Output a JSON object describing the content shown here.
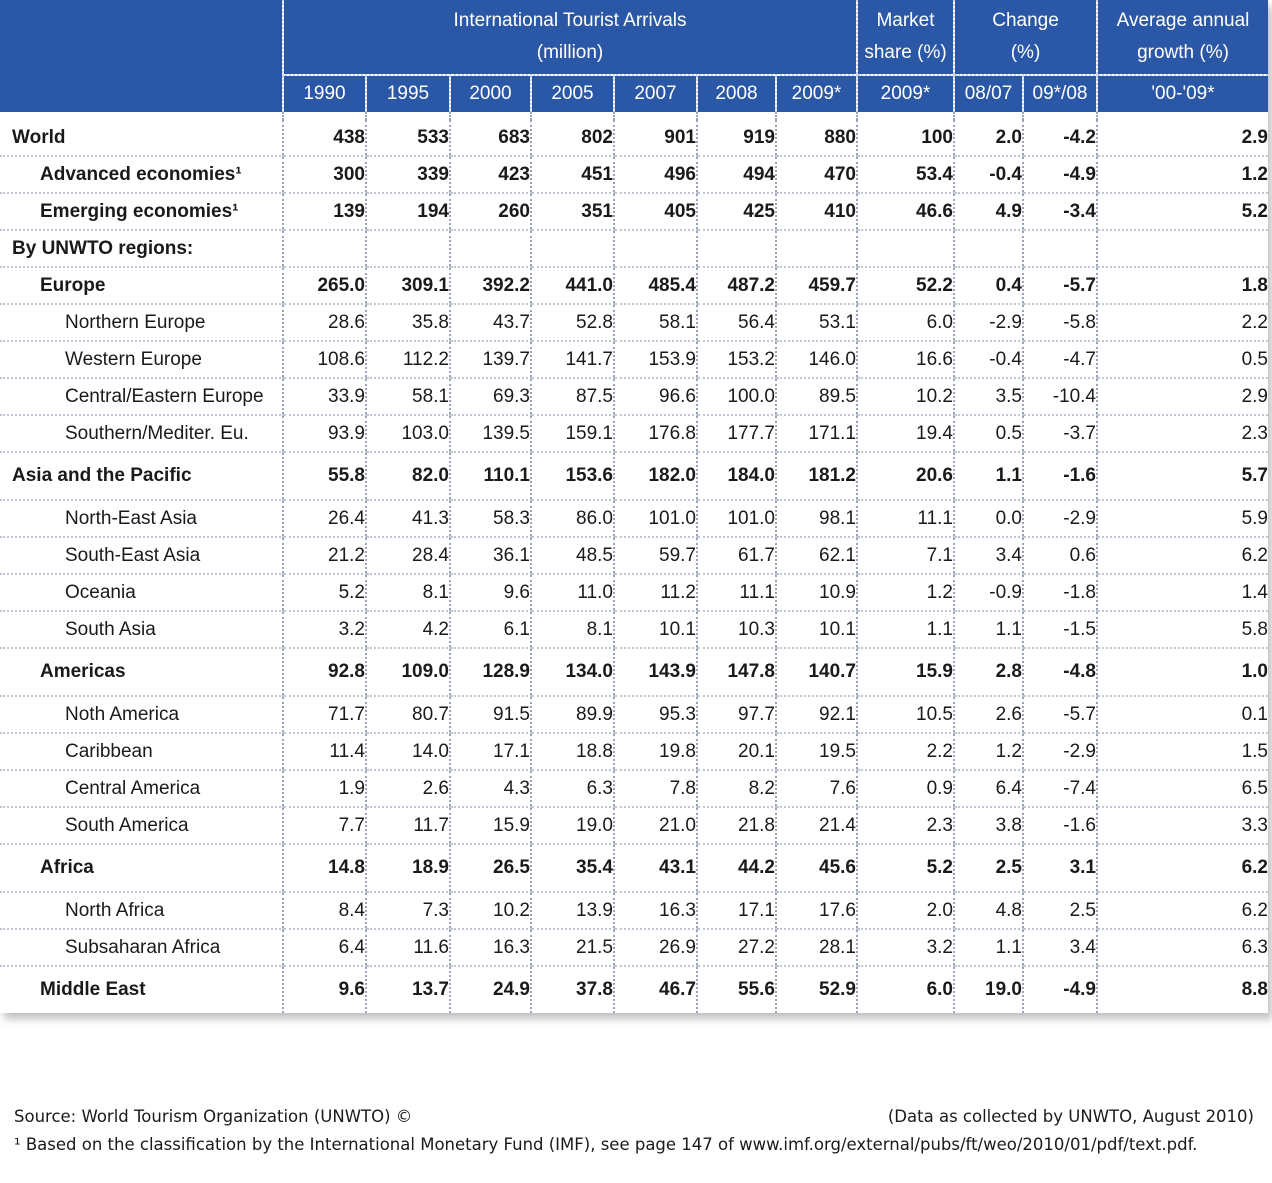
{
  "header": {
    "arrivals_line1": "International Tourist Arrivals",
    "arrivals_line2": "(million)",
    "market_line1": "Market",
    "market_line2": "share (%)",
    "change_line1": "Change",
    "change_line2": "(%)",
    "growth_line1": "Average annual",
    "growth_line2": "growth (%)",
    "years": [
      "1990",
      "1995",
      "2000",
      "2005",
      "2007",
      "2008",
      "2009*"
    ],
    "share_year": "2009*",
    "change_cols": [
      "08/07",
      "09*/08"
    ],
    "growth_period": "'00-'09*"
  },
  "rows": [
    {
      "label": "World",
      "v": [
        "438",
        "533",
        "683",
        "802",
        "901",
        "919",
        "880",
        "100",
        "2.0",
        "-4.2",
        "2.9"
      ]
    },
    {
      "label": "Advanced economies¹",
      "v": [
        "300",
        "339",
        "423",
        "451",
        "496",
        "494",
        "470",
        "53.4",
        "-0.4",
        "-4.9",
        "1.2"
      ]
    },
    {
      "label": "Emerging economies¹",
      "v": [
        "139",
        "194",
        "260",
        "351",
        "405",
        "425",
        "410",
        "46.6",
        "4.9",
        "-3.4",
        "5.2"
      ]
    },
    {
      "label": "By UNWTO regions:"
    },
    {
      "label": "Europe",
      "v": [
        "265.0",
        "309.1",
        "392.2",
        "441.0",
        "485.4",
        "487.2",
        "459.7",
        "52.2",
        "0.4",
        "-5.7",
        "1.8"
      ]
    },
    {
      "label": "Northern Europe",
      "v": [
        "28.6",
        "35.8",
        "43.7",
        "52.8",
        "58.1",
        "56.4",
        "53.1",
        "6.0",
        "-2.9",
        "-5.8",
        "2.2"
      ]
    },
    {
      "label": "Western Europe",
      "v": [
        "108.6",
        "112.2",
        "139.7",
        "141.7",
        "153.9",
        "153.2",
        "146.0",
        "16.6",
        "-0.4",
        "-4.7",
        "0.5"
      ]
    },
    {
      "label": "Central/Eastern Europe",
      "v": [
        "33.9",
        "58.1",
        "69.3",
        "87.5",
        "96.6",
        "100.0",
        "89.5",
        "10.2",
        "3.5",
        "-10.4",
        "2.9"
      ]
    },
    {
      "label": "Southern/Mediter. Eu.",
      "v": [
        "93.9",
        "103.0",
        "139.5",
        "159.1",
        "176.8",
        "177.7",
        "171.1",
        "19.4",
        "0.5",
        "-3.7",
        "2.3"
      ]
    },
    {
      "label": "Asia and the Pacific",
      "v": [
        "55.8",
        "82.0",
        "110.1",
        "153.6",
        "182.0",
        "184.0",
        "181.2",
        "20.6",
        "1.1",
        "-1.6",
        "5.7"
      ]
    },
    {
      "label": "North-East Asia",
      "v": [
        "26.4",
        "41.3",
        "58.3",
        "86.0",
        "101.0",
        "101.0",
        "98.1",
        "11.1",
        "0.0",
        "-2.9",
        "5.9"
      ]
    },
    {
      "label": "South-East Asia",
      "v": [
        "21.2",
        "28.4",
        "36.1",
        "48.5",
        "59.7",
        "61.7",
        "62.1",
        "7.1",
        "3.4",
        "0.6",
        "6.2"
      ]
    },
    {
      "label": "Oceania",
      "v": [
        "5.2",
        "8.1",
        "9.6",
        "11.0",
        "11.2",
        "11.1",
        "10.9",
        "1.2",
        "-0.9",
        "-1.8",
        "1.4"
      ]
    },
    {
      "label": "South Asia",
      "v": [
        "3.2",
        "4.2",
        "6.1",
        "8.1",
        "10.1",
        "10.3",
        "10.1",
        "1.1",
        "1.1",
        "-1.5",
        "5.8"
      ]
    },
    {
      "label": "Americas",
      "v": [
        "92.8",
        "109.0",
        "128.9",
        "134.0",
        "143.9",
        "147.8",
        "140.7",
        "15.9",
        "2.8",
        "-4.8",
        "1.0"
      ]
    },
    {
      "label": "Noth America",
      "v": [
        "71.7",
        "80.7",
        "91.5",
        "89.9",
        "95.3",
        "97.7",
        "92.1",
        "10.5",
        "2.6",
        "-5.7",
        "0.1"
      ]
    },
    {
      "label": "Caribbean",
      "v": [
        "11.4",
        "14.0",
        "17.1",
        "18.8",
        "19.8",
        "20.1",
        "19.5",
        "2.2",
        "1.2",
        "-2.9",
        "1.5"
      ]
    },
    {
      "label": "Central America",
      "v": [
        "1.9",
        "2.6",
        "4.3",
        "6.3",
        "7.8",
        "8.2",
        "7.6",
        "0.9",
        "6.4",
        "-7.4",
        "6.5"
      ]
    },
    {
      "label": "South America",
      "v": [
        "7.7",
        "11.7",
        "15.9",
        "19.0",
        "21.0",
        "21.8",
        "21.4",
        "2.3",
        "3.8",
        "-1.6",
        "3.3"
      ]
    },
    {
      "label": "Africa",
      "v": [
        "14.8",
        "18.9",
        "26.5",
        "35.4",
        "43.1",
        "44.2",
        "45.6",
        "5.2",
        "2.5",
        "3.1",
        "6.2"
      ]
    },
    {
      "label": "North Africa",
      "v": [
        "8.4",
        "7.3",
        "10.2",
        "13.9",
        "16.3",
        "17.1",
        "17.6",
        "2.0",
        "4.8",
        "2.5",
        "6.2"
      ]
    },
    {
      "label": "Subsaharan Africa",
      "v": [
        "6.4",
        "11.6",
        "16.3",
        "21.5",
        "26.9",
        "27.2",
        "28.1",
        "3.2",
        "1.1",
        "3.4",
        "6.3"
      ]
    },
    {
      "label": "Middle East",
      "v": [
        "9.6",
        "13.7",
        "24.9",
        "37.8",
        "46.7",
        "55.6",
        "52.9",
        "6.0",
        "19.0",
        "-4.9",
        "8.8"
      ]
    }
  ],
  "footer": {
    "source": "Source: World Tourism Organization (UNWTO) ©",
    "collected": "(Data as collected by UNWTO, August 2010)",
    "note": "¹ Based on the classification by the International Monetary Fund (IMF), see page 147 of www.imf.org/external/pubs/ft/weo/2010/01/pdf/text.pdf."
  },
  "colors": {
    "header_bg": "#2b58a6",
    "header_text": "#ffffff"
  }
}
